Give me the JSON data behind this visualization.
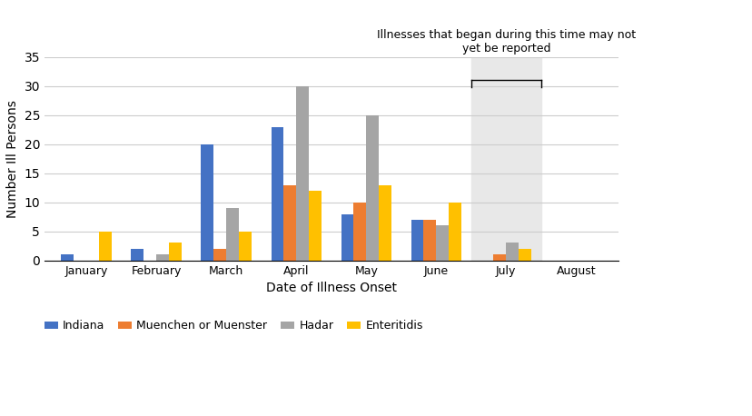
{
  "months": [
    "January",
    "February",
    "March",
    "April",
    "May",
    "June",
    "July",
    "August"
  ],
  "indiana": [
    1,
    2,
    20,
    23,
    8,
    7,
    0,
    0
  ],
  "muenchen": [
    0,
    0,
    2,
    13,
    10,
    7,
    1,
    0
  ],
  "hadar": [
    0,
    1,
    9,
    30,
    25,
    6,
    3,
    0
  ],
  "enteritidis": [
    5,
    3,
    5,
    12,
    13,
    10,
    2,
    0
  ],
  "indiana_color": "#4472C4",
  "muenchen_color": "#ED7D31",
  "hadar_color": "#A5A5A5",
  "enteritidis_color": "#FFC000",
  "shaded_region_color": "#E8E8E8",
  "xlabel": "Date of Illness Onset",
  "ylabel": "Number Ill Persons",
  "ylim": [
    0,
    35
  ],
  "yticks": [
    0,
    5,
    10,
    15,
    20,
    25,
    30,
    35
  ],
  "annotation_text": "Illnesses that began during this time may not\nyet be reported",
  "legend_labels": [
    "Indiana",
    "Muenchen or Muenster",
    "Hadar",
    "Enteritidis"
  ],
  "bar_width": 0.18,
  "background_color": "#FFFFFF",
  "grid_color": "#CCCCCC"
}
